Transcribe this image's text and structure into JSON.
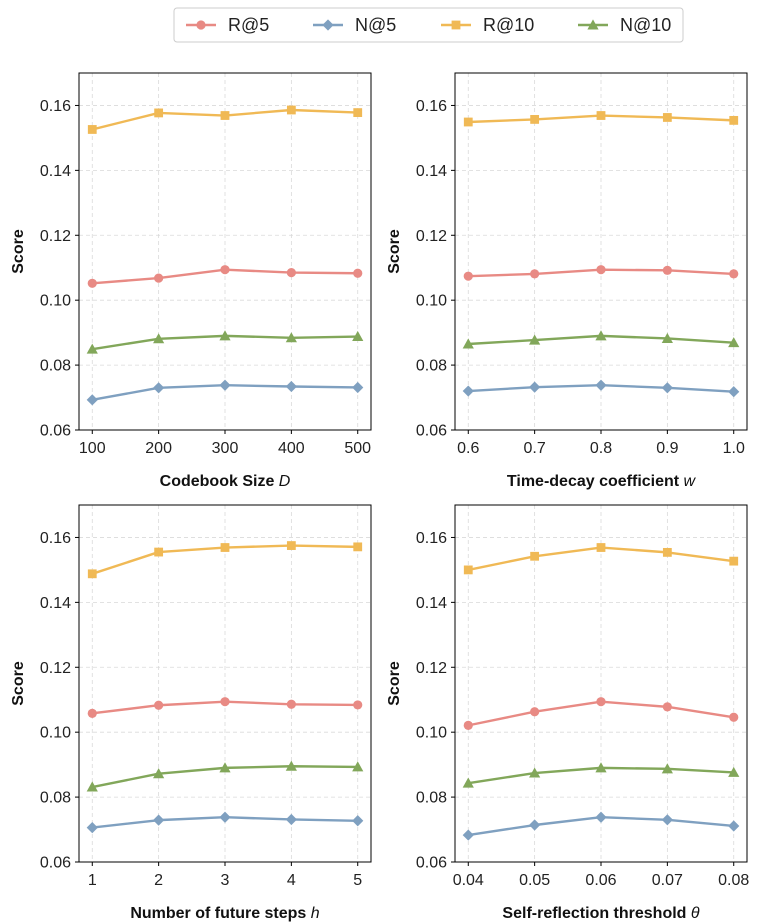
{
  "legend": [
    {
      "name": "R@5",
      "color": "#E88A84",
      "marker": "circle"
    },
    {
      "name": "N@5",
      "color": "#7FA0C0",
      "marker": "diamond"
    },
    {
      "name": "R@10",
      "color": "#F0B955",
      "marker": "square"
    },
    {
      "name": "N@10",
      "color": "#82A75A",
      "marker": "triangle"
    }
  ],
  "chart_data": [
    {
      "type": "line",
      "xlabel": "Codebook Size",
      "xlabel_var": "D",
      "ylabel": "Score",
      "x": [
        100,
        200,
        300,
        400,
        500
      ],
      "x_tick_labels": [
        "100",
        "200",
        "300",
        "400",
        "500"
      ],
      "ylim": [
        0.06,
        0.17
      ],
      "y_ticks": [
        "0.06",
        "0.08",
        "0.10",
        "0.12",
        "0.14",
        "0.16"
      ],
      "grid": true,
      "series": [
        {
          "name": "R@5",
          "values": [
            0.1052,
            0.1068,
            0.1094,
            0.1085,
            0.1083
          ]
        },
        {
          "name": "N@5",
          "values": [
            0.0693,
            0.073,
            0.0738,
            0.0734,
            0.0731
          ]
        },
        {
          "name": "R@10",
          "values": [
            0.1526,
            0.1577,
            0.1569,
            0.1586,
            0.1578
          ]
        },
        {
          "name": "N@10",
          "values": [
            0.0849,
            0.0881,
            0.089,
            0.0884,
            0.0888
          ]
        }
      ]
    },
    {
      "type": "line",
      "xlabel": "Time-decay coefficient",
      "xlabel_var": "w",
      "ylabel": "Score",
      "x": [
        0.6,
        0.7,
        0.8,
        0.9,
        1.0
      ],
      "x_tick_labels": [
        "0.6",
        "0.7",
        "0.8",
        "0.9",
        "1.0"
      ],
      "ylim": [
        0.06,
        0.17
      ],
      "y_ticks": [
        "0.06",
        "0.08",
        "0.10",
        "0.12",
        "0.14",
        "0.16"
      ],
      "grid": true,
      "series": [
        {
          "name": "R@5",
          "values": [
            0.1074,
            0.1081,
            0.1094,
            0.1092,
            0.1081
          ]
        },
        {
          "name": "N@5",
          "values": [
            0.072,
            0.0732,
            0.0738,
            0.073,
            0.0718
          ]
        },
        {
          "name": "R@10",
          "values": [
            0.1549,
            0.1557,
            0.1569,
            0.1563,
            0.1554
          ]
        },
        {
          "name": "N@10",
          "values": [
            0.0865,
            0.0877,
            0.089,
            0.0882,
            0.0869
          ]
        }
      ]
    },
    {
      "type": "line",
      "xlabel": "Number of future steps",
      "xlabel_var": "h",
      "ylabel": "Score",
      "x": [
        1,
        2,
        3,
        4,
        5
      ],
      "x_tick_labels": [
        "1",
        "2",
        "3",
        "4",
        "5"
      ],
      "ylim": [
        0.06,
        0.17
      ],
      "y_ticks": [
        "0.06",
        "0.08",
        "0.10",
        "0.12",
        "0.14",
        "0.16"
      ],
      "grid": true,
      "series": [
        {
          "name": "R@5",
          "values": [
            0.1058,
            0.1083,
            0.1094,
            0.1086,
            0.1084
          ]
        },
        {
          "name": "N@5",
          "values": [
            0.0706,
            0.0729,
            0.0738,
            0.0731,
            0.0727
          ]
        },
        {
          "name": "R@10",
          "values": [
            0.1488,
            0.1555,
            0.1569,
            0.1575,
            0.1571
          ]
        },
        {
          "name": "N@10",
          "values": [
            0.0831,
            0.0872,
            0.089,
            0.0895,
            0.0893
          ]
        }
      ]
    },
    {
      "type": "line",
      "xlabel": "Self-reflection threshold",
      "xlabel_var": "θ",
      "ylabel": "Score",
      "x": [
        0.04,
        0.05,
        0.06,
        0.07,
        0.08
      ],
      "x_tick_labels": [
        "0.04",
        "0.05",
        "0.06",
        "0.07",
        "0.08"
      ],
      "ylim": [
        0.06,
        0.17
      ],
      "y_ticks": [
        "0.06",
        "0.08",
        "0.10",
        "0.12",
        "0.14",
        "0.16"
      ],
      "grid": true,
      "series": [
        {
          "name": "R@5",
          "values": [
            0.1021,
            0.1063,
            0.1094,
            0.1078,
            0.1046
          ]
        },
        {
          "name": "N@5",
          "values": [
            0.0683,
            0.0714,
            0.0738,
            0.073,
            0.0711
          ]
        },
        {
          "name": "R@10",
          "values": [
            0.15,
            0.1542,
            0.1569,
            0.1554,
            0.1527
          ]
        },
        {
          "name": "N@10",
          "values": [
            0.0843,
            0.0874,
            0.089,
            0.0887,
            0.0876
          ]
        }
      ]
    }
  ]
}
